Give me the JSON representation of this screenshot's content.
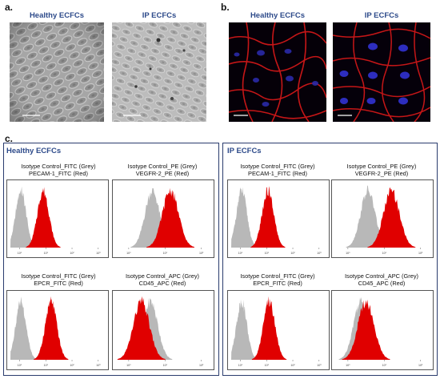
{
  "panels": {
    "a": {
      "letter": "a.",
      "left_title": "Healthy ECFCs",
      "right_title": "IP ECFCs"
    },
    "b": {
      "letter": "b.",
      "left_title": "Healthy ECFCs",
      "right_title": "IP ECFCs"
    },
    "c": {
      "letter": "c.",
      "groups": [
        {
          "title": "Healthy ECFCs",
          "plots": [
            {
              "line1": "Isotype Control_FITC (Grey)",
              "line2": "PECAM-1_FITC (Red)",
              "grey_peak_log": 0.4,
              "red_peak_log": 1.25,
              "ticks": [
                "10⁰",
                "10¹",
                "10²",
                "10³"
              ]
            },
            {
              "line1": "Isotype Control_PE (Grey)",
              "line2": "VEGFR-2_PE (Red)",
              "grey_peak_log": 1.0,
              "red_peak_log": 1.5,
              "ticks": [
                "10⁰",
                "10¹",
                "10²"
              ]
            },
            {
              "line1": "Isotype Control_FITC (Grey)",
              "line2": "EPCR_FITC (Red)",
              "grey_peak_log": 0.4,
              "red_peak_log": 1.55,
              "ticks": [
                "10⁰",
                "10¹",
                "10²",
                "10³"
              ]
            },
            {
              "line1": "Isotype Control_APC (Grey)",
              "line2": "CD45_APC (Red)",
              "grey_peak_log": 0.95,
              "red_peak_log": 0.7,
              "ticks": [
                "10⁰",
                "10¹",
                "10²"
              ]
            }
          ]
        },
        {
          "title": "IP ECFCs",
          "plots": [
            {
              "line1": "Isotype Control_FITC (Grey)",
              "line2": "PECAM-1_FITC (Red)",
              "grey_peak_log": 0.4,
              "red_peak_log": 1.4,
              "ticks": [
                "10⁰",
                "10¹",
                "10²",
                "10³"
              ]
            },
            {
              "line1": "Isotype Control_PE (Grey)",
              "line2": "VEGFR-2_PE (Red)",
              "grey_peak_log": 0.9,
              "red_peak_log": 1.55,
              "ticks": [
                "10⁰",
                "10¹",
                "10²"
              ]
            },
            {
              "line1": "Isotype Control_FITC (Grey)",
              "line2": "EPCR_FITC (Red)",
              "grey_peak_log": 0.4,
              "red_peak_log": 1.45,
              "ticks": [
                "10⁰",
                "10¹",
                "10²",
                "10³"
              ]
            },
            {
              "line1": "Isotype Control_APC (Grey)",
              "line2": "CD45_APC (Red)",
              "grey_peak_log": 0.7,
              "red_peak_log": 0.85,
              "ticks": [
                "10⁰",
                "10¹",
                "10²"
              ]
            }
          ]
        }
      ]
    }
  },
  "colors": {
    "title_blue": "#2d4a8a",
    "histogram_red": "#e00000",
    "histogram_grey": "#b8b8b8",
    "frame_navy": "#2a3c6e"
  }
}
